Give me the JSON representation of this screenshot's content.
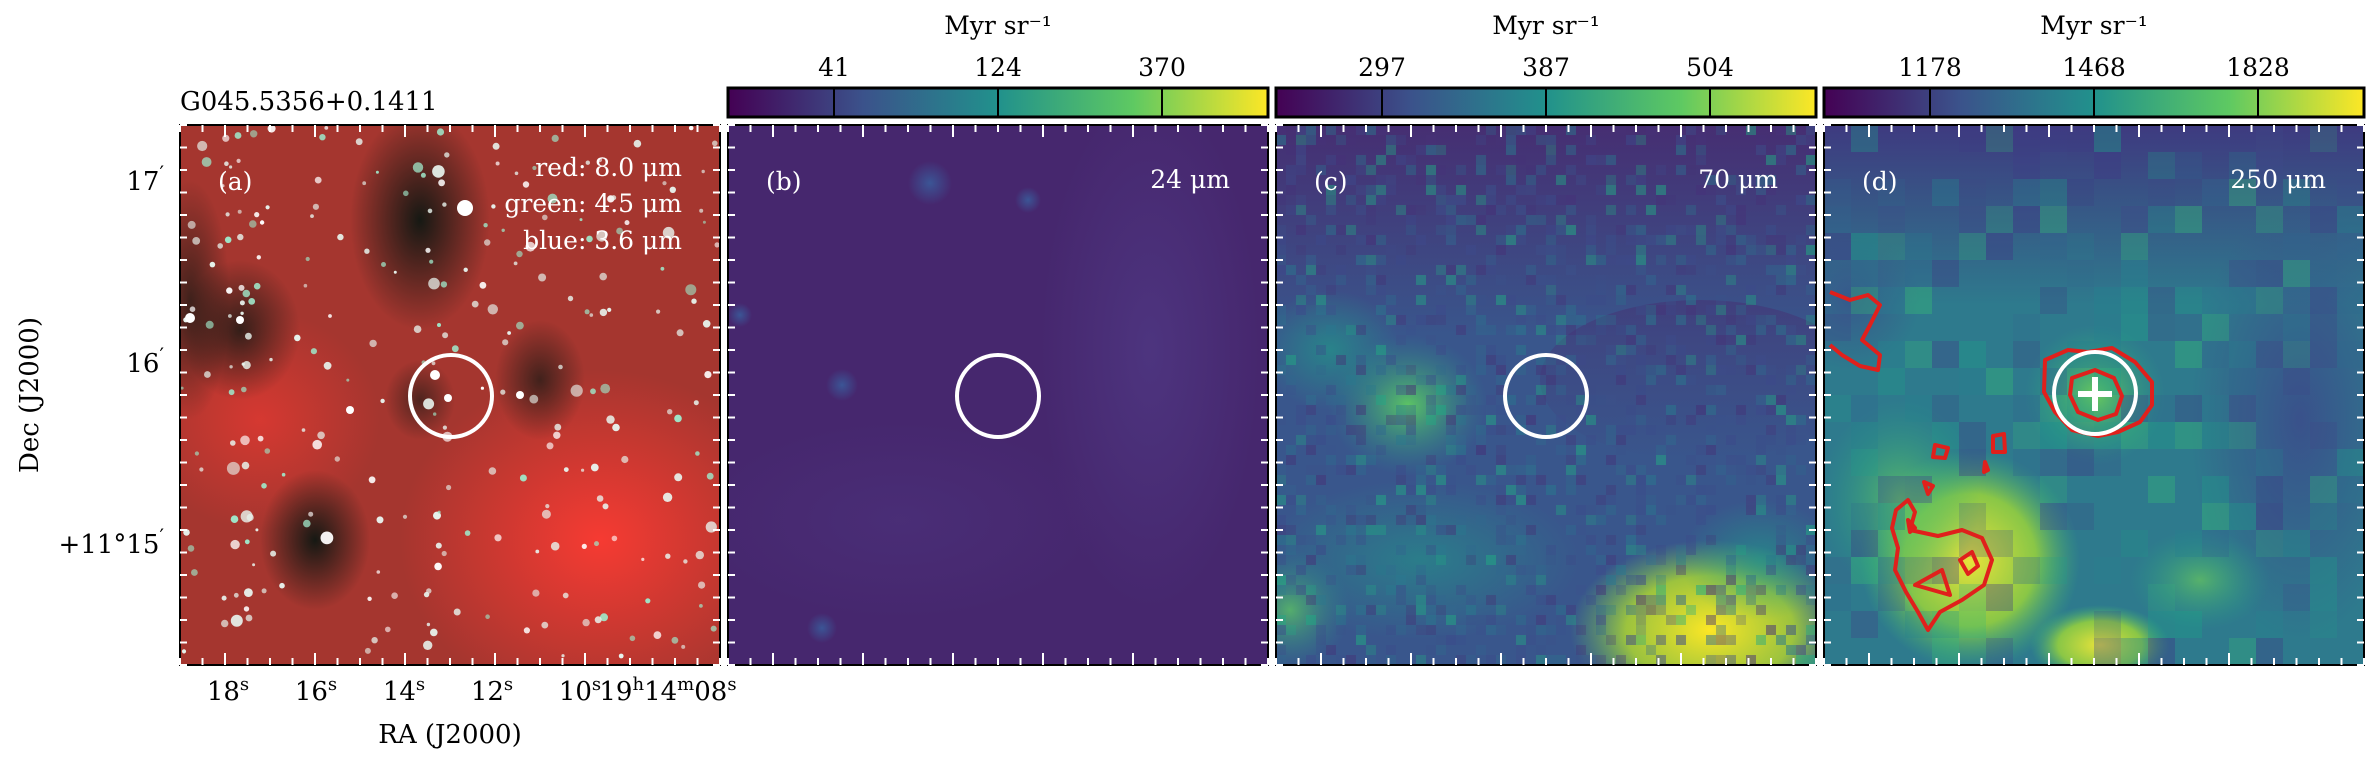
{
  "figure": {
    "source_name": "G045.5356+0.1411",
    "ylabel": "Dec (J2000)",
    "xlabel": "RA (J2000)",
    "ra_ticks": [
      "18",
      "16",
      "14",
      "12",
      "10"
    ],
    "ra_sup": "s",
    "ra_last": "19",
    "ra_last_h": "h",
    "ra_last_m": "14",
    "ra_last_msup": "m",
    "ra_last_s": "08",
    "dec_ticks": [
      {
        "main": "17",
        "sup": "′"
      },
      {
        "main": "16",
        "sup": "′"
      },
      {
        "main": "+11°15",
        "sup": "′"
      }
    ]
  },
  "panels": [
    {
      "letter": "(a)",
      "legend": [
        "red: 8.0 μm",
        "green: 4.5 μm",
        "blue: 3.6 μm"
      ],
      "bg": "#b83a31"
    },
    {
      "letter": "(b)",
      "wavelength": "24 μm",
      "colorbar_label": "Myr sr⁻¹",
      "colorbar_ticks": [
        "41",
        "124",
        "370"
      ],
      "bg": "#47256c"
    },
    {
      "letter": "(c)",
      "wavelength": "70 μm",
      "colorbar_label": "Myr sr⁻¹",
      "colorbar_ticks": [
        "297",
        "387",
        "504"
      ],
      "bg": "#3b528b"
    },
    {
      "letter": "(d)",
      "wavelength": "250 μm",
      "colorbar_label": "Myr sr⁻¹",
      "colorbar_ticks": [
        "1178",
        "1468",
        "1828"
      ],
      "bg": "#2c7a8e"
    }
  ],
  "colors": {
    "viridis": [
      "#440154",
      "#3b528b",
      "#21918c",
      "#5ec962",
      "#fde725"
    ],
    "contour": "#e0201c",
    "marker": "#ffffff"
  }
}
